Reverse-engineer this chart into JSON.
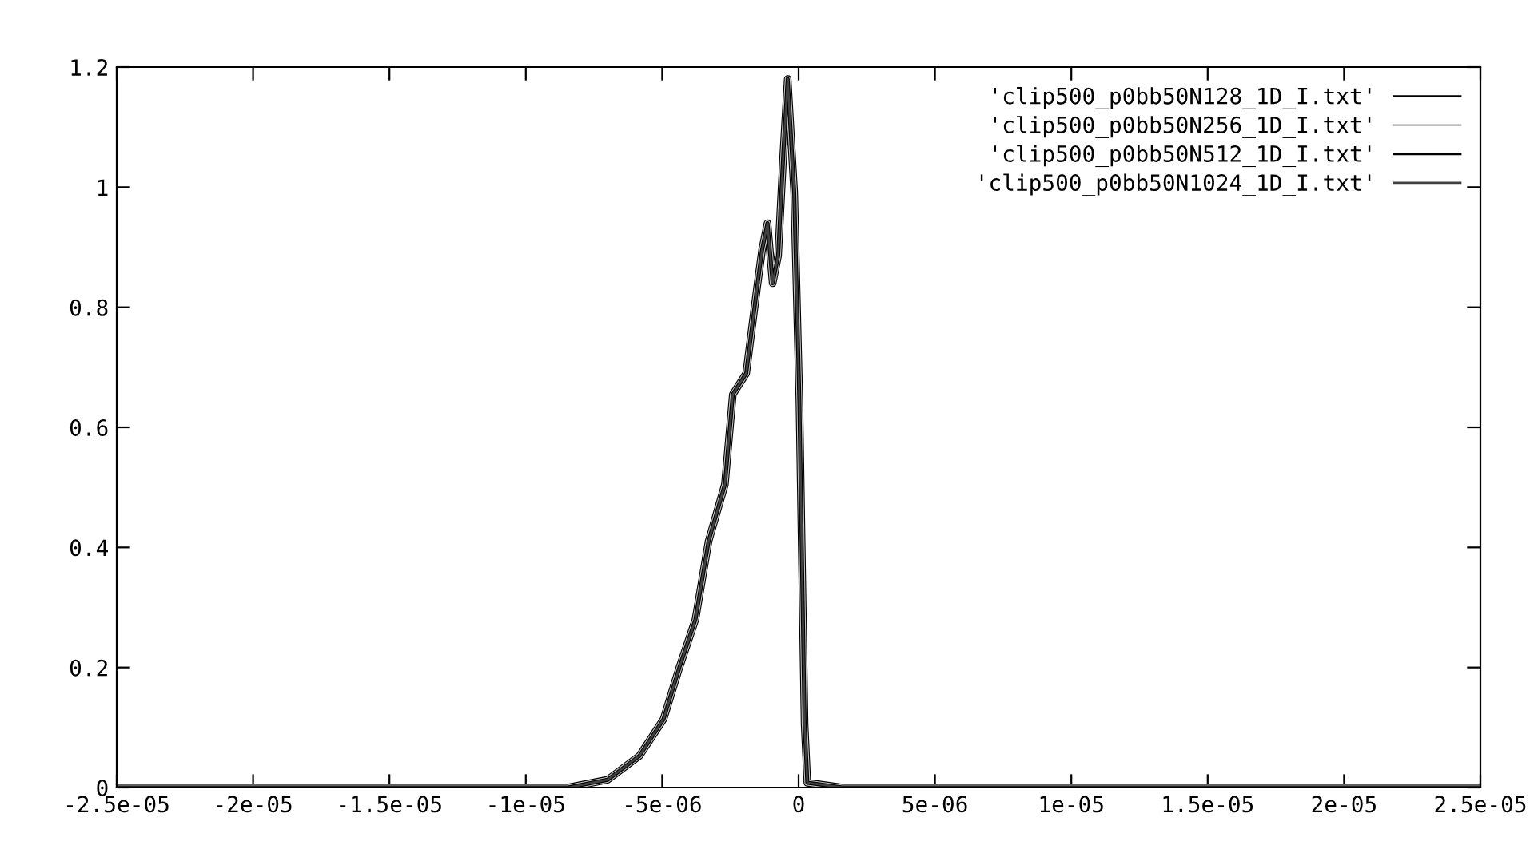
{
  "chart_data": {
    "type": "line",
    "x": [
      -2.5e-05,
      -8.45e-06,
      -7e-06,
      -5.83e-06,
      -4.95e-06,
      -4.37e-06,
      -3.78e-06,
      -3.3e-06,
      -2.7e-06,
      -2.41e-06,
      -1.92e-06,
      -1.53e-06,
      -1.34e-06,
      -1.14e-06,
      -9.5e-07,
      -7.5e-07,
      -5.6e-07,
      -4e-07,
      -1.6e-07,
      3e-08,
      2.2e-07,
      3.2e-07,
      8.1e-07,
      1.6e-06,
      2.5e-05
    ],
    "series": [
      {
        "name": "'clip500_p0bb50N128_1D_I.txt'",
        "color": "#000000",
        "values": [
          0,
          0,
          0.013,
          0.053,
          0.114,
          0.2,
          0.28,
          0.41,
          0.505,
          0.655,
          0.69,
          0.83,
          0.895,
          0.94,
          0.84,
          0.886,
          1.055,
          1.18,
          0.99,
          0.64,
          0.106,
          0.008,
          0.005,
          0,
          0
        ]
      },
      {
        "name": "'clip500_p0bb50N256_1D_I.txt'",
        "color": "#c0c0c0",
        "values": [
          0,
          0,
          0.013,
          0.053,
          0.114,
          0.2,
          0.28,
          0.41,
          0.505,
          0.655,
          0.69,
          0.83,
          0.895,
          0.94,
          0.84,
          0.886,
          1.055,
          1.18,
          0.99,
          0.64,
          0.106,
          0.008,
          0.005,
          0,
          0
        ]
      },
      {
        "name": "'clip500_p0bb50N512_1D_I.txt'",
        "color": "#000000",
        "values": [
          0,
          0,
          0.013,
          0.053,
          0.114,
          0.2,
          0.28,
          0.41,
          0.505,
          0.655,
          0.69,
          0.83,
          0.895,
          0.94,
          0.84,
          0.886,
          1.055,
          1.18,
          0.99,
          0.64,
          0.106,
          0.008,
          0.005,
          0,
          0
        ]
      },
      {
        "name": "'clip500_p0bb50N1024_1D_I.txt'",
        "color": "#404040",
        "values": [
          0,
          0,
          0.013,
          0.053,
          0.114,
          0.2,
          0.28,
          0.41,
          0.505,
          0.655,
          0.69,
          0.83,
          0.895,
          0.94,
          0.84,
          0.886,
          1.055,
          1.18,
          0.99,
          0.64,
          0.106,
          0.008,
          0.005,
          0,
          0
        ]
      }
    ],
    "xlim": [
      -2.5e-05,
      2.5e-05
    ],
    "xticks": [
      -2.5e-05,
      -2e-05,
      -1.5e-05,
      -1e-05,
      {
        "value": -5e-06,
        "label": "-5e-06"
      },
      0,
      {
        "value": 5e-06,
        "label": "5e-06"
      },
      1e-05,
      1.5e-05,
      2e-05,
      2.5e-05
    ],
    "ylim": [
      0,
      1.2
    ],
    "yticks": [
      0,
      0.2,
      0.4,
      0.6,
      0.8,
      1,
      1.2
    ],
    "legend": "top right",
    "grid": false,
    "marker": "none",
    "line_style": "solid"
  }
}
